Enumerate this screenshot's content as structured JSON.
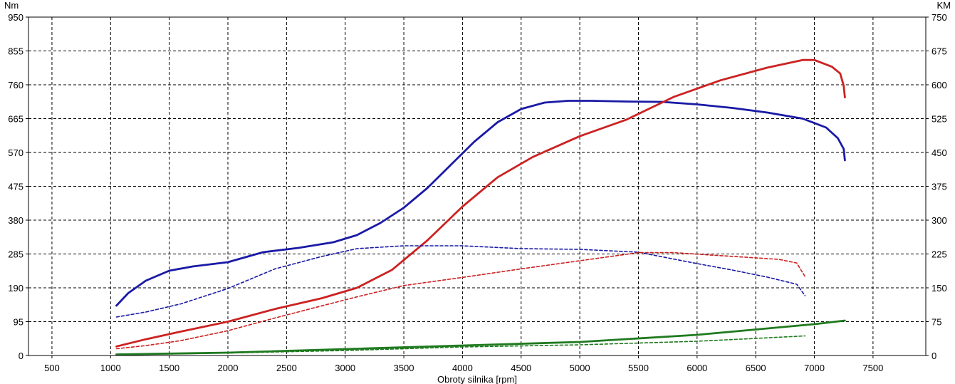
{
  "chart_data": {
    "type": "line",
    "xlabel": "Obroty silnika [rpm]",
    "ylabel_left": "Nm",
    "ylabel_right": "KM",
    "xlim": [
      300,
      7950
    ],
    "ylim_left": [
      0,
      950
    ],
    "ylim_right": [
      0,
      750
    ],
    "x_ticks": [
      500,
      1000,
      1500,
      2000,
      2500,
      3000,
      3500,
      4000,
      4500,
      5000,
      5500,
      6000,
      6500,
      7000,
      7500
    ],
    "y_left_ticks": [
      0,
      95,
      190,
      285,
      380,
      475,
      570,
      665,
      760,
      855,
      950
    ],
    "y_right_ticks": [
      0,
      75,
      150,
      225,
      300,
      375,
      450,
      525,
      600,
      675,
      750
    ],
    "grid": true,
    "series": [
      {
        "color": "#1a1aa6",
        "axis": "left",
        "style": "solid",
        "x": [
          1050,
          1150,
          1300,
          1500,
          1700,
          2000,
          2300,
          2600,
          2900,
          3100,
          3300,
          3500,
          3700,
          3900,
          4100,
          4300,
          4500,
          4700,
          4900,
          5100,
          5400,
          5700,
          6000,
          6300,
          6600,
          6900,
          7100,
          7200,
          7250,
          7260
        ],
        "y": [
          140,
          175,
          210,
          238,
          250,
          262,
          290,
          302,
          318,
          338,
          372,
          415,
          470,
          535,
          600,
          655,
          692,
          710,
          715,
          715,
          713,
          712,
          705,
          695,
          682,
          665,
          640,
          610,
          580,
          548
        ]
      },
      {
        "color": "#cc2222",
        "axis": "right",
        "style": "solid",
        "x": [
          1050,
          1300,
          1600,
          2000,
          2400,
          2800,
          3100,
          3400,
          3700,
          4000,
          4300,
          4600,
          5000,
          5400,
          5800,
          6200,
          6600,
          6900,
          7000,
          7150,
          7220,
          7250,
          7260
        ],
        "y": [
          20,
          36,
          53,
          75,
          103,
          127,
          150,
          190,
          255,
          330,
          395,
          440,
          486,
          523,
          573,
          610,
          638,
          655,
          655,
          640,
          625,
          598,
          572
        ]
      },
      {
        "color": "#1a1aa6",
        "axis": "left",
        "style": "dashed",
        "x": [
          1050,
          1300,
          1600,
          2000,
          2400,
          2800,
          3100,
          3500,
          4000,
          4500,
          5000,
          5500,
          6000,
          6300,
          6600,
          6850,
          6920
        ],
        "y": [
          108,
          122,
          145,
          188,
          243,
          278,
          300,
          308,
          308,
          300,
          298,
          290,
          258,
          240,
          220,
          200,
          168
        ]
      },
      {
        "color": "#cc2222",
        "axis": "right",
        "style": "dashed",
        "x": [
          1050,
          1300,
          1600,
          2000,
          2400,
          2800,
          3100,
          3500,
          4000,
          4500,
          5000,
          5500,
          5800,
          6100,
          6400,
          6700,
          6850,
          6920
        ],
        "y": [
          15,
          22,
          33,
          55,
          83,
          110,
          130,
          155,
          173,
          192,
          210,
          228,
          228,
          223,
          218,
          213,
          205,
          175
        ]
      },
      {
        "color": "#1f7a1f",
        "axis": "left",
        "style": "solid",
        "x": [
          1050,
          2000,
          3000,
          4000,
          5000,
          6000,
          7000,
          7260
        ],
        "y": [
          3,
          8,
          18,
          28,
          38,
          58,
          88,
          98
        ]
      },
      {
        "color": "#1f7a1f",
        "axis": "left",
        "style": "dashed",
        "x": [
          1050,
          2000,
          3000,
          4000,
          5000,
          6000,
          6500,
          6920
        ],
        "y": [
          2,
          7,
          14,
          24,
          30,
          40,
          48,
          55
        ]
      }
    ]
  }
}
